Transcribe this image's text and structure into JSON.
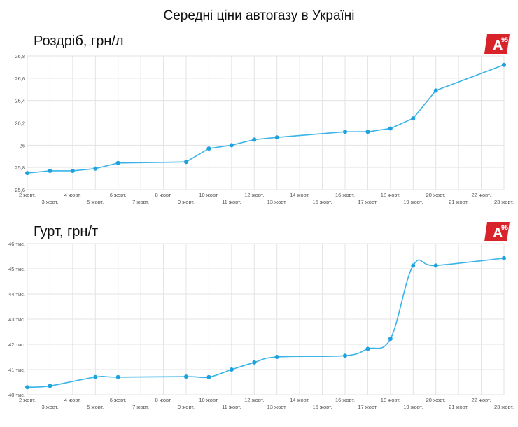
{
  "title": "Середні ціни автогазу в Україні",
  "logo_text": "A",
  "logo_superscript": "95",
  "colors": {
    "line": "#3ab3e8",
    "point": "#1ea2de",
    "logo": "#d8232a"
  },
  "chart_data": [
    {
      "type": "line",
      "title": "Роздріб, грн/л",
      "x": [
        "2 жовт.",
        "3 жовт.",
        "4 жовт.",
        "5 жовт.",
        "6 жовт.",
        "7 жовт.",
        "8 жовт.",
        "9 жовт.",
        "10 жовт.",
        "11 жовт.",
        "12 жовт.",
        "13 жовт.",
        "14 жовт.",
        "15 жовт.",
        "16 жовт.",
        "17 жовт.",
        "18 жовт.",
        "19 жовт.",
        "20 жовт.",
        "21 жовт.",
        "22 жовт.",
        "23 жовт."
      ],
      "y_ticks": [
        "25,6",
        "25,8",
        "26",
        "26,2",
        "26,4",
        "26,6",
        "26,8"
      ],
      "ylim": [
        25.6,
        26.8
      ],
      "grid": true,
      "series": [
        {
          "points": [
            {
              "x": "2 жовт.",
              "y": 25.75
            },
            {
              "x": "3 жовт.",
              "y": 25.77
            },
            {
              "x": "4 жовт.",
              "y": 25.77
            },
            {
              "x": "5 жовт.",
              "y": 25.79
            },
            {
              "x": "6 жовт.",
              "y": 25.84
            },
            {
              "x": "9 жовт.",
              "y": 25.85
            },
            {
              "x": "10 жовт.",
              "y": 25.97
            },
            {
              "x": "11 жовт.",
              "y": 26.0
            },
            {
              "x": "12 жовт.",
              "y": 26.05
            },
            {
              "x": "13 жовт.",
              "y": 26.07
            },
            {
              "x": "16 жовт.",
              "y": 26.12
            },
            {
              "x": "17 жовт.",
              "y": 26.12
            },
            {
              "x": "18 жовт.",
              "y": 26.15
            },
            {
              "x": "19 жовт.",
              "y": 26.24
            },
            {
              "x": "20 жовт.",
              "y": 26.49
            },
            {
              "x": "23 жовт.",
              "y": 26.72
            }
          ]
        }
      ]
    },
    {
      "type": "line",
      "title": "Гурт, грн/т",
      "x": [
        "2 жовт.",
        "3 жовт.",
        "4 жовт.",
        "5 жовт.",
        "6 жовт.",
        "7 жовт.",
        "8 жовт.",
        "9 жовт.",
        "10 жовт.",
        "11 жовт.",
        "12 жовт.",
        "13 жовт.",
        "14 жовт.",
        "15 жовт.",
        "16 жовт.",
        "17 жовт.",
        "18 жовт.",
        "19 жовт.",
        "20 жовт.",
        "21 жовт.",
        "22 жовт.",
        "23 жовт."
      ],
      "y_ticks": [
        "40 тис.",
        "41 тис.",
        "42 тис.",
        "43 тис.",
        "44 тис.",
        "45 тис.",
        "46 тис."
      ],
      "ylim": [
        40000,
        46000
      ],
      "grid": true,
      "series": [
        {
          "points": [
            {
              "x": "2 жовт.",
              "y": 40300
            },
            {
              "x": "3 жовт.",
              "y": 40350
            },
            {
              "x": "5 жовт.",
              "y": 40700
            },
            {
              "x": "6 жовт.",
              "y": 40700
            },
            {
              "x": "9 жовт.",
              "y": 40720
            },
            {
              "x": "10 жовт.",
              "y": 40700
            },
            {
              "x": "11 жовт.",
              "y": 41000
            },
            {
              "x": "12 жовт.",
              "y": 41280
            },
            {
              "x": "13 жовт.",
              "y": 41500
            },
            {
              "x": "16 жовт.",
              "y": 41550
            },
            {
              "x": "17 жовт.",
              "y": 41820
            },
            {
              "x": "18 жовт.",
              "y": 42220
            },
            {
              "x": "19 жовт.",
              "y": 45130
            },
            {
              "x": "20 жовт.",
              "y": 45130
            },
            {
              "x": "23 жовт.",
              "y": 45420
            }
          ]
        }
      ]
    }
  ]
}
